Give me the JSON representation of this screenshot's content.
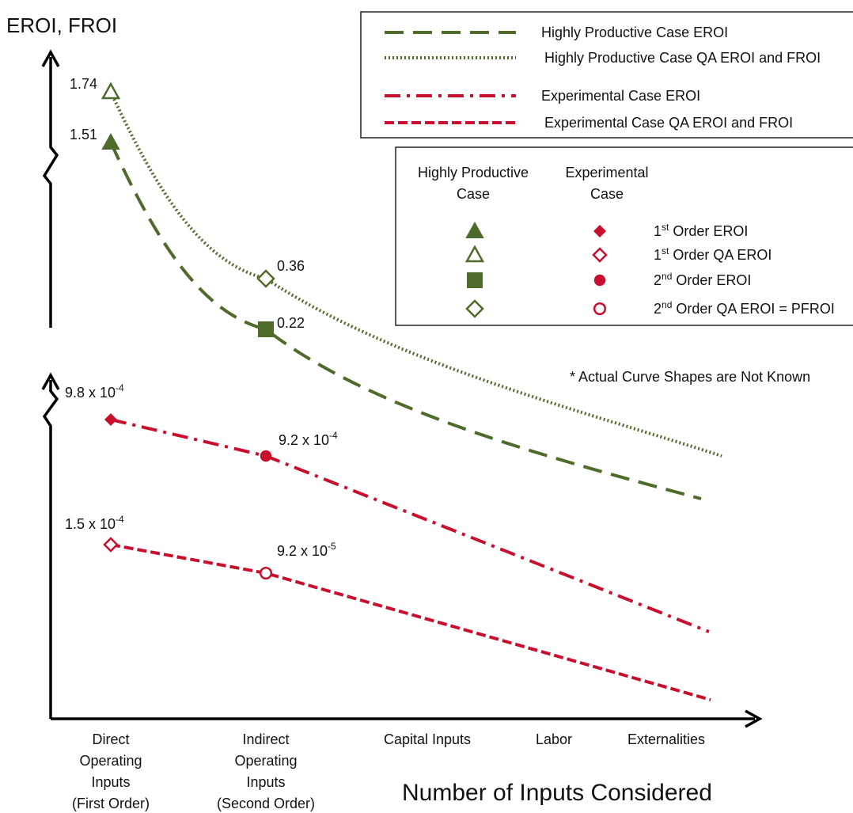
{
  "colors": {
    "green": "#4f6b2b",
    "red": "#c8102e",
    "axis": "#000000"
  },
  "legend_lines": {
    "items": [
      {
        "label": "Highly Productive Case EROI",
        "color": "#4f6b2b",
        "dash": "long-dash"
      },
      {
        "label": "Highly Productive Case QA EROI and FROI",
        "color": "#4f6b2b",
        "dash": "dotted"
      },
      {
        "label": "Experimental Case EROI",
        "color": "#c8102e",
        "dash": "dash-dot"
      },
      {
        "label": "Experimental Case QA EROI and FROI",
        "color": "#c8102e",
        "dash": "short-dash"
      }
    ]
  },
  "legend_markers": {
    "header_hp_1": "Highly Productive",
    "header_hp_2": "Case",
    "header_exp_1": "Experimental",
    "header_exp_2": "Case",
    "rows": [
      {
        "hp_icon": "filled-triangle-icon",
        "exp_icon": "filled-diamond-icon",
        "prefix": "1",
        "sup": "st",
        "suffix": " Order EROI"
      },
      {
        "hp_icon": "open-triangle-icon",
        "exp_icon": "open-diamond-icon",
        "prefix": "1",
        "sup": "st",
        "suffix": " Order QA EROI"
      },
      {
        "hp_icon": "filled-square-icon",
        "exp_icon": "filled-circle-icon",
        "prefix": "2",
        "sup": "nd",
        "suffix": " Order EROI"
      },
      {
        "hp_icon": "open-diamond-icon",
        "exp_icon": "open-circle-icon",
        "prefix": "2",
        "sup": "nd",
        "suffix": " Order QA EROI = PFROI"
      }
    ]
  },
  "note": "* Actual Curve Shapes are Not Known",
  "chart_data": {
    "type": "line",
    "ylabel": "EROI, FROI",
    "xlabel": "Number of Inputs Considered",
    "y_axis_broken": true,
    "legend_position": "top-right",
    "categories": [
      [
        "Direct",
        "Operating",
        "Inputs",
        "(First Order)"
      ],
      [
        "Indirect",
        "Operating",
        "Inputs",
        "(Second Order)"
      ],
      [
        "Capital Inputs"
      ],
      [
        "Labor"
      ],
      [
        "Externalities"
      ]
    ],
    "series": [
      {
        "name": "Highly Productive Case EROI",
        "color": "#4f6b2b",
        "dash": "long-dash",
        "points": [
          {
            "x": 0,
            "value": 1.51,
            "label": "1.51",
            "marker": "filled-triangle"
          },
          {
            "x": 1,
            "value": 0.22,
            "label": "0.22",
            "marker": "filled-square"
          }
        ]
      },
      {
        "name": "Highly Productive Case QA EROI and FROI",
        "color": "#4f6b2b",
        "dash": "dotted",
        "points": [
          {
            "x": 0,
            "value": 1.74,
            "label": "1.74",
            "marker": "open-triangle"
          },
          {
            "x": 1,
            "value": 0.36,
            "label": "0.36",
            "marker": "open-diamond"
          }
        ]
      },
      {
        "name": "Experimental Case EROI",
        "color": "#c8102e",
        "dash": "dash-dot",
        "points": [
          {
            "x": 0,
            "value": 0.00098,
            "label_base": "9.8 x 10",
            "label_exp": "-4",
            "marker": "filled-diamond"
          },
          {
            "x": 1,
            "value": 0.00092,
            "label_base": "9.2 x 10",
            "label_exp": "-4",
            "marker": "filled-circle"
          }
        ]
      },
      {
        "name": "Experimental Case QA EROI and FROI",
        "color": "#c8102e",
        "dash": "short-dash",
        "points": [
          {
            "x": 0,
            "value": 0.00015,
            "label_base": "1.5 x 10",
            "label_exp": "-4",
            "marker": "open-diamond"
          },
          {
            "x": 1,
            "value": 9.2e-05,
            "label_base": "9.2 x 10",
            "label_exp": "-5",
            "marker": "open-circle"
          }
        ]
      }
    ]
  }
}
